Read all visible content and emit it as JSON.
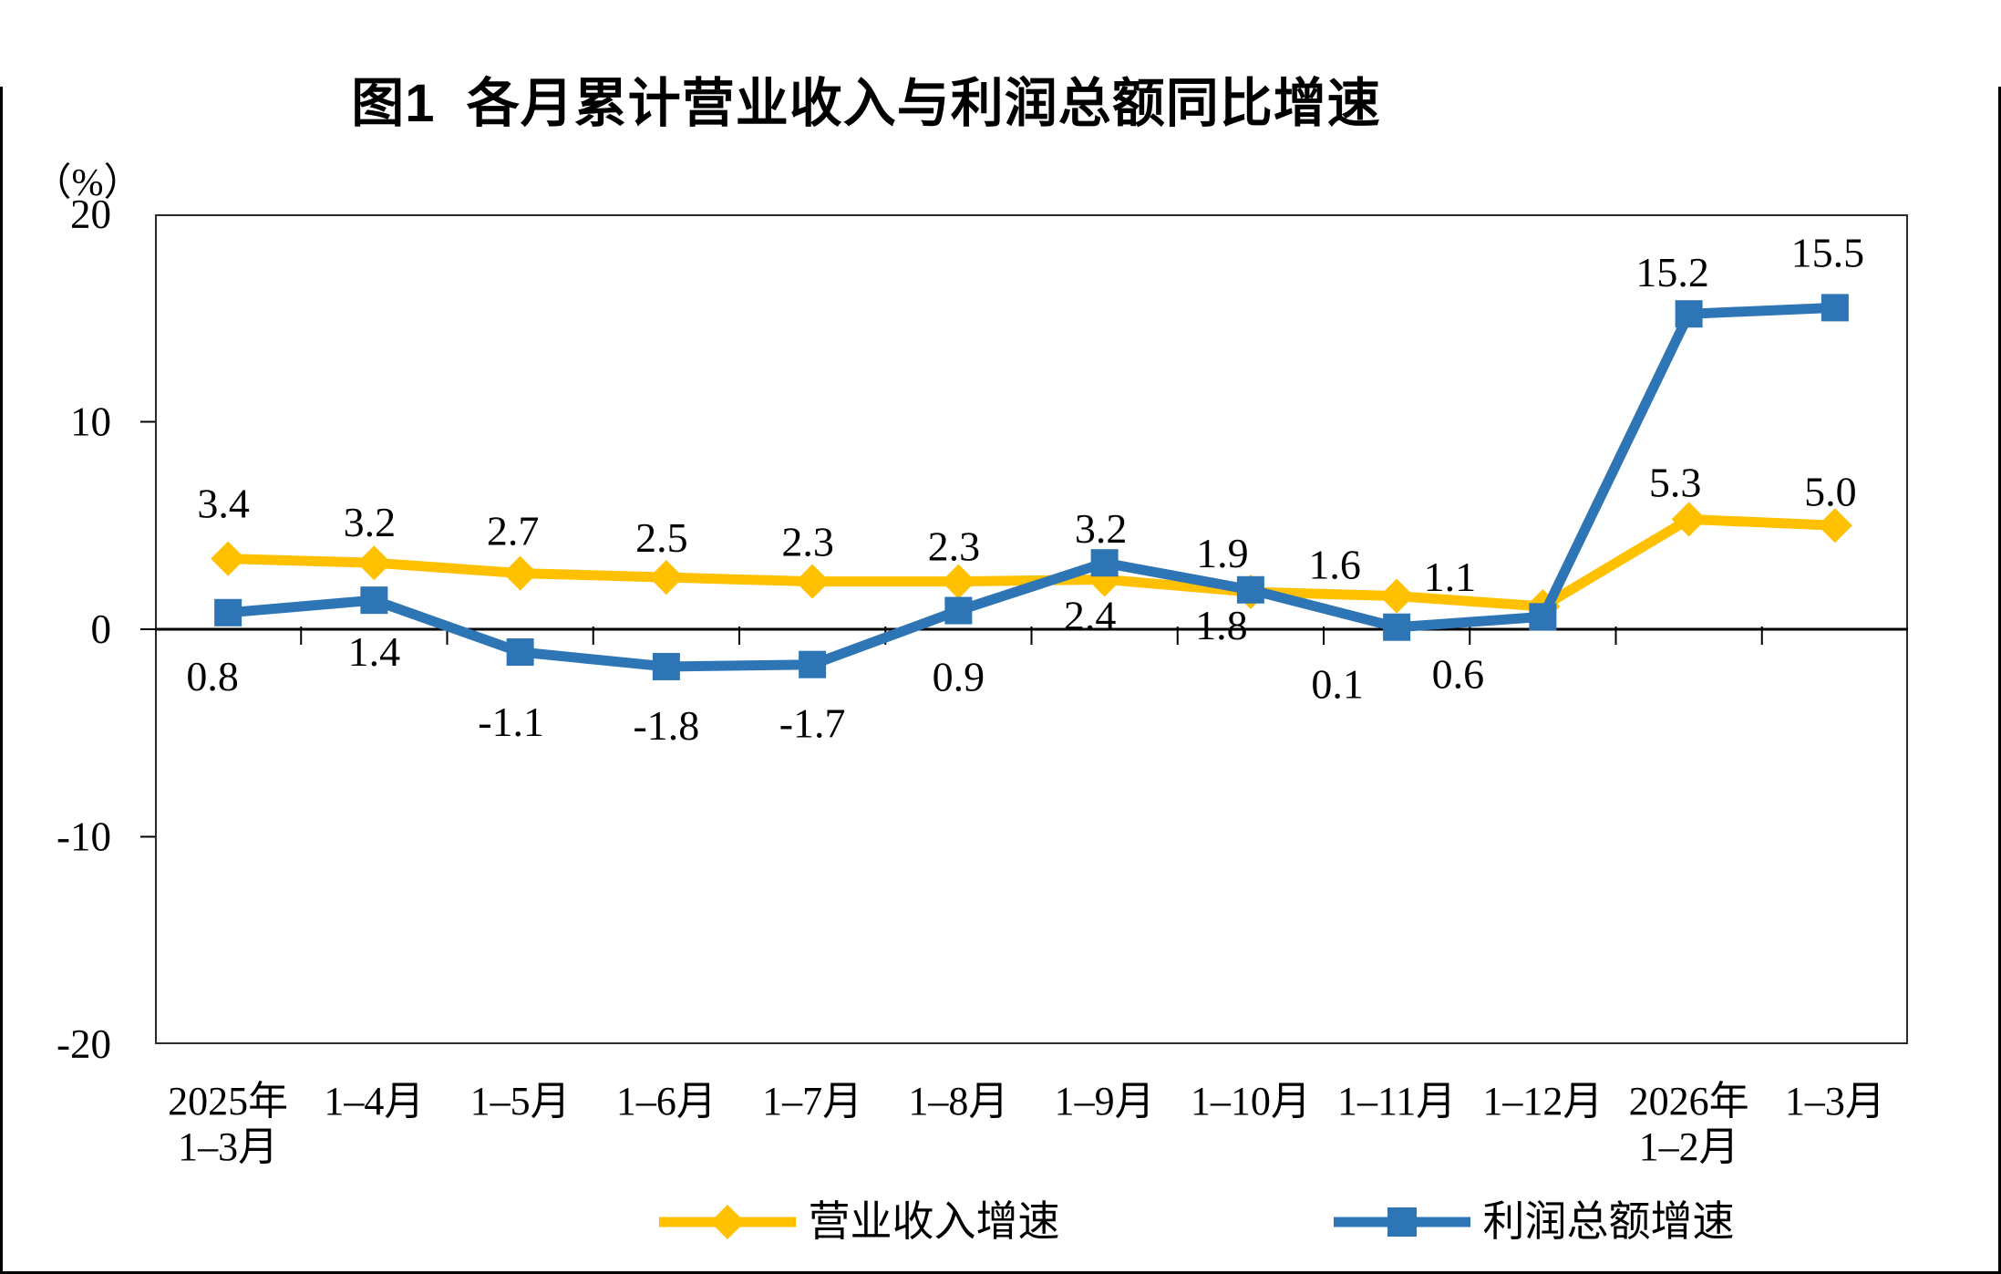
{
  "chart_data": {
    "type": "line",
    "title": "图1  各月累计营业收入与利润总额同比增速",
    "unit_label": "（%）",
    "ylim": [
      -20,
      20
    ],
    "y_ticks": [
      20,
      10,
      0,
      -10,
      -20
    ],
    "grid": false,
    "zero_line": true,
    "legend_position": "bottom",
    "categories": [
      [
        "2025年",
        "1–3月"
      ],
      [
        "1–4月"
      ],
      [
        "1–5月"
      ],
      [
        "1–6月"
      ],
      [
        "1–7月"
      ],
      [
        "1–8月"
      ],
      [
        "1–9月"
      ],
      [
        "1–10月"
      ],
      [
        "1–11月"
      ],
      [
        "1–12月"
      ],
      [
        "2026年",
        "1–2月"
      ],
      [
        "1–3月"
      ]
    ],
    "series": [
      {
        "key": "revenue",
        "name": "营业收入增速",
        "color": "#FFC000",
        "marker": "diamond",
        "values": [
          3.4,
          3.2,
          2.7,
          2.5,
          2.3,
          2.3,
          2.4,
          1.8,
          1.6,
          1.1,
          5.3,
          5.0
        ],
        "label_offsets": [
          [
            -5,
            -45
          ],
          [
            -5,
            -29
          ],
          [
            -8,
            -31
          ],
          [
            -5,
            -28
          ],
          [
            -5,
            -28
          ],
          [
            -5,
            -23
          ],
          [
            -16,
            55
          ],
          [
            -32,
            52
          ],
          [
            -68,
            -19
          ],
          [
            -102,
            -17
          ],
          [
            -15,
            -25
          ],
          [
            -5,
            -22
          ]
        ]
      },
      {
        "key": "profit",
        "name": "利润总额增速",
        "color": "#2E75B6",
        "marker": "square",
        "values": [
          0.8,
          1.4,
          -1.1,
          -1.8,
          -1.7,
          0.9,
          3.2,
          1.9,
          0.1,
          0.6,
          15.2,
          15.5
        ],
        "label_offsets": [
          [
            -17,
            85
          ],
          [
            0,
            72
          ],
          [
            -10,
            92
          ],
          [
            0,
            80
          ],
          [
            0,
            80
          ],
          [
            0,
            88
          ],
          [
            -4,
            -22
          ],
          [
            -31,
            -25
          ],
          [
            -65,
            78
          ],
          [
            -93,
            78
          ],
          [
            -18,
            -30
          ],
          [
            -8,
            -45
          ]
        ]
      }
    ]
  }
}
